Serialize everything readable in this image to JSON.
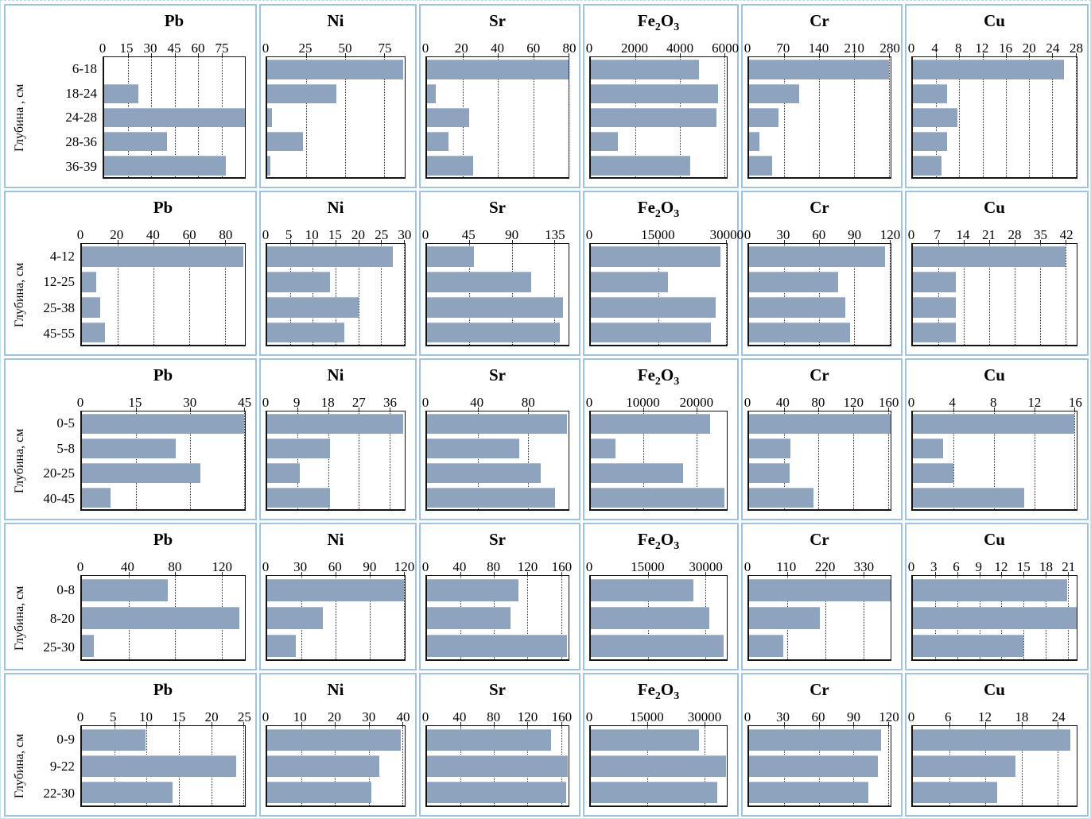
{
  "colors": {
    "bar": "#8da3be",
    "panel_border": "#9dc3e6",
    "grid_line": "#3c3c3c",
    "plot_border": "#141414"
  },
  "chart_data": {
    "type": "bar",
    "orientation": "horizontal",
    "grid": "dotted-vertical",
    "rows": [
      {
        "ylabel": "Глубина , см",
        "depths": [
          "6-18",
          "18-24",
          "24-28",
          "28-36",
          "36-39"
        ],
        "charts": [
          {
            "title": "Pb",
            "ticks": [
              0,
              15,
              30,
              45,
              60,
              75
            ],
            "axis_max": 90,
            "values": [
              0,
              22,
              90,
              40,
              78
            ]
          },
          {
            "title": "Ni",
            "ticks": [
              0,
              25,
              50,
              75
            ],
            "axis_max": 88,
            "values": [
              87,
              44,
              3,
              23,
              2
            ]
          },
          {
            "title": "Sr",
            "ticks": [
              0,
              20,
              40,
              60,
              80
            ],
            "axis_max": 80,
            "values": [
              80,
              5,
              24,
              12,
              26
            ]
          },
          {
            "title": "Fe2O3",
            "ticks": [
              0,
              2000,
              4000,
              6000
            ],
            "axis_max": 6100,
            "values": [
              4850,
              5700,
              5650,
              1200,
              4450
            ]
          },
          {
            "title": "Cr",
            "ticks": [
              0,
              70,
              140,
              210,
              280
            ],
            "axis_max": 283,
            "values": [
              280,
              100,
              59,
              21,
              46
            ]
          },
          {
            "title": "Cu",
            "ticks": [
              0,
              4,
              8,
              12,
              16,
              20,
              24,
              28
            ],
            "axis_max": 28.2,
            "values": [
              26,
              5.9,
              7.7,
              5.9,
              4.9
            ]
          }
        ]
      },
      {
        "ylabel": "Глубина, см",
        "depths": [
          "4-12",
          "12-25",
          "25-38",
          "45-55"
        ],
        "charts": [
          {
            "title": "Pb",
            "ticks": [
              0,
              20,
              40,
              60,
              80
            ],
            "axis_max": 91,
            "values": [
              90,
              8,
              10,
              13
            ]
          },
          {
            "title": "Ni",
            "ticks": [
              0,
              5,
              10,
              15,
              20,
              25,
              30
            ],
            "axis_max": 30.2,
            "values": [
              27.6,
              13.8,
              20,
              17
            ]
          },
          {
            "title": "Sr",
            "ticks": [
              0,
              45,
              90,
              135
            ],
            "axis_max": 150,
            "values": [
              50,
              110,
              144,
              141
            ]
          },
          {
            "title": "Fe2O3",
            "ticks": [
              0,
              15000,
              30000
            ],
            "axis_max": 30200,
            "values": [
              28700,
              17200,
              27650,
              26650
            ]
          },
          {
            "title": "Cr",
            "ticks": [
              0,
              30,
              60,
              90,
              120
            ],
            "axis_max": 121,
            "values": [
              116,
              76,
              82,
              86
            ]
          },
          {
            "title": "Cu",
            "ticks": [
              0,
              7,
              14,
              21,
              28,
              35,
              42
            ],
            "axis_max": 45,
            "values": [
              42,
              11.9,
              11.7,
              11.7
            ]
          }
        ]
      },
      {
        "ylabel": "Глубина, см",
        "depths": [
          "0-5",
          "5-8",
          "20-25",
          "40-45"
        ],
        "charts": [
          {
            "title": "Pb",
            "ticks": [
              0,
              15,
              30,
              45
            ],
            "axis_max": 45.3,
            "values": [
              45,
              26,
              33,
              8
            ]
          },
          {
            "title": "Ni",
            "ticks": [
              0,
              9,
              18,
              27,
              36
            ],
            "axis_max": 40.5,
            "values": [
              40,
              18.5,
              9.5,
              18.5
            ]
          },
          {
            "title": "Sr",
            "ticks": [
              0,
              40,
              80
            ],
            "axis_max": 112,
            "values": [
              111,
              73,
              90,
              101
            ]
          },
          {
            "title": "Fe2O3",
            "ticks": [
              0,
              10000,
              20000
            ],
            "axis_max": 25800,
            "values": [
              22600,
              4700,
              17500,
              25400
            ]
          },
          {
            "title": "Cr",
            "ticks": [
              0,
              40,
              80,
              120,
              160
            ],
            "axis_max": 163,
            "values": [
              163,
              48,
              47,
              74
            ]
          },
          {
            "title": "Cu",
            "ticks": [
              0,
              4,
              8,
              12,
              16
            ],
            "axis_max": 16.2,
            "values": [
              16,
              3,
              4,
              11
            ]
          }
        ]
      },
      {
        "ylabel": "Глубина, см",
        "depths": [
          "0-8",
          "8-20",
          "25-30"
        ],
        "charts": [
          {
            "title": "Pb",
            "ticks": [
              0,
              40,
              80,
              120
            ],
            "axis_max": 140,
            "values": [
              74,
              135,
              10
            ]
          },
          {
            "title": "Ni",
            "ticks": [
              0,
              30,
              60,
              90,
              120
            ],
            "axis_max": 121,
            "values": [
              120,
              49,
              25
            ]
          },
          {
            "title": "Sr",
            "ticks": [
              0,
              40,
              80,
              120,
              160
            ],
            "axis_max": 169,
            "values": [
              109,
              100,
              167
            ]
          },
          {
            "title": "Fe2O3",
            "ticks": [
              0,
              15000,
              30000
            ],
            "axis_max": 35600,
            "values": [
              26900,
              31000,
              34800
            ]
          },
          {
            "title": "Cr",
            "ticks": [
              0,
              110,
              220,
              330
            ],
            "axis_max": 408,
            "values": [
              408,
              204,
              98
            ]
          },
          {
            "title": "Cu",
            "ticks": [
              0,
              3,
              6,
              9,
              12,
              15,
              18,
              21
            ],
            "axis_max": 22.2,
            "values": [
              20.9,
              22.2,
              15
            ]
          }
        ]
      },
      {
        "ylabel": "Глубина, см",
        "depths": [
          "0-9",
          "9-22",
          "22-30"
        ],
        "charts": [
          {
            "title": "Pb",
            "ticks": [
              0,
              5,
              10,
              15,
              20,
              25
            ],
            "axis_max": 25.2,
            "values": [
              9.8,
              23.8,
              14
            ]
          },
          {
            "title": "Ni",
            "ticks": [
              0,
              10,
              20,
              30,
              40
            ],
            "axis_max": 40.7,
            "values": [
              39.6,
              33.2,
              30.8
            ]
          },
          {
            "title": "Sr",
            "ticks": [
              0,
              40,
              80,
              120,
              160
            ],
            "axis_max": 169,
            "values": [
              148,
              168,
              166
            ]
          },
          {
            "title": "Fe2O3",
            "ticks": [
              0,
              15000,
              30000
            ],
            "axis_max": 36000,
            "values": [
              28600,
              35700,
              33400
            ]
          },
          {
            "title": "Cr",
            "ticks": [
              0,
              30,
              60,
              90,
              120
            ],
            "axis_max": 122,
            "values": [
              113.5,
              110.8,
              102.6
            ]
          },
          {
            "title": "Cu",
            "ticks": [
              0,
              6,
              12,
              18,
              24
            ],
            "axis_max": 27.1,
            "values": [
              26.1,
              17,
              14
            ]
          }
        ]
      }
    ]
  }
}
